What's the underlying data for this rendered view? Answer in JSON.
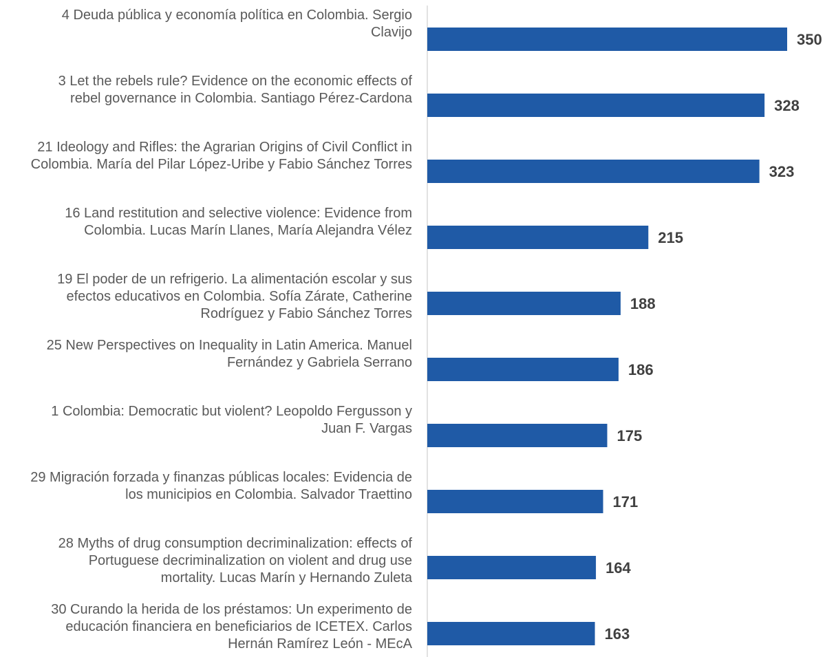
{
  "chart_data": {
    "type": "bar",
    "orientation": "horizontal",
    "title": "",
    "xlabel": "",
    "ylabel": "",
    "xlim": [
      0,
      350
    ],
    "grid": false,
    "legend": "none",
    "bar_color": "#1F5AA6",
    "axis_color": "#D9D9D9",
    "label_color": "#595959",
    "value_label_color": "#404040",
    "categories": [
      [
        "4 Deuda pública y economía política en Colombia. Sergio",
        "Clavijo"
      ],
      [
        "3 Let the rebels rule? Evidence on the economic effects of",
        "rebel governance in Colombia. Santiago Pérez-Cardona"
      ],
      [
        "21 Ideology and Rifles: the Agrarian Origins of Civil Conflict in",
        "Colombia. María del Pilar López-Uribe y Fabio Sánchez Torres"
      ],
      [
        "16 Land restitution and selective violence: Evidence from",
        "Colombia. Lucas Marín Llanes, María Alejandra Vélez"
      ],
      [
        "19 El poder de un refrigerio. La alimentación escolar y sus",
        "efectos educativos en Colombia. Sofía  Zárate, Catherine",
        "Rodríguez  y Fabio Sánchez Torres"
      ],
      [
        "25 New Perspectives on Inequality in Latin America. Manuel",
        "Fernández y Gabriela Serrano"
      ],
      [
        "1 Colombia: Democratic but violent?  Leopoldo Fergusson y",
        "Juan F. Vargas"
      ],
      [
        "29 Migración forzada y finanzas públicas locales: Evidencia de",
        "los municipios en Colombia. Salvador Traettino"
      ],
      [
        "28 Myths of drug consumption decriminalization: effects of",
        "Portuguese decriminalization on violent and drug use",
        "mortality. Lucas Marín y Hernando Zuleta"
      ],
      [
        "30 Curando la herida de los préstamos: Un experimento de",
        "educación financiera en beneficiarios de ICETEX. Carlos",
        "Hernán Ramírez León - MEcA"
      ]
    ],
    "values": [
      350,
      328,
      323,
      215,
      188,
      186,
      175,
      171,
      164,
      163
    ],
    "data_labels": [
      "350",
      "328",
      "323",
      "215",
      "188",
      "186",
      "175",
      "171",
      "164",
      "163"
    ]
  }
}
